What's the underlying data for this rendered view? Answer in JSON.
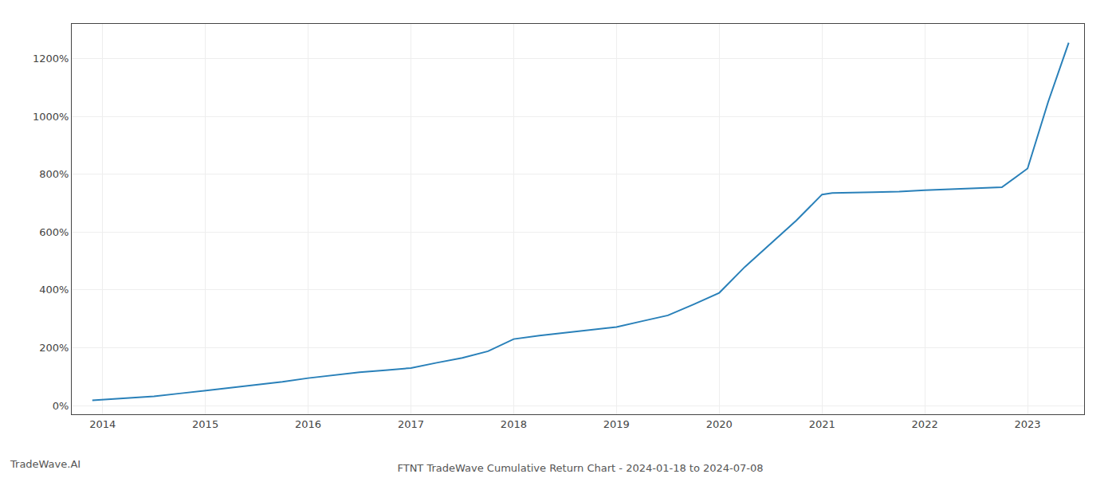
{
  "chart_data": {
    "type": "line",
    "title": "FTNT TradeWave Cumulative Return Chart - 2024-01-18 to 2024-07-08",
    "annotations": [
      "TradeWave.AI"
    ],
    "x": [
      2013.9,
      2014.0,
      2014.25,
      2014.5,
      2014.75,
      2015.0,
      2015.25,
      2015.5,
      2015.75,
      2016.0,
      2016.25,
      2016.5,
      2016.75,
      2017.0,
      2017.25,
      2017.5,
      2017.75,
      2018.0,
      2018.25,
      2018.5,
      2018.75,
      2019.0,
      2019.25,
      2019.5,
      2019.75,
      2020.0,
      2020.25,
      2020.5,
      2020.75,
      2021.0,
      2021.1,
      2021.5,
      2021.75,
      2022.0,
      2022.25,
      2022.5,
      2022.6,
      2022.75,
      2023.0,
      2023.2,
      2023.4
    ],
    "values": [
      18,
      20,
      25,
      32,
      42,
      52,
      62,
      72,
      82,
      95,
      105,
      115,
      122,
      130,
      148,
      165,
      188,
      230,
      242,
      252,
      262,
      272,
      292,
      312,
      350,
      390,
      480,
      560,
      640,
      730,
      735,
      738,
      740,
      745,
      748,
      750,
      752,
      755,
      820,
      1050,
      1255
    ],
    "color": "#2980b9",
    "xlim": [
      2013.7,
      2023.55
    ],
    "xticks": [
      2014,
      2015,
      2016,
      2017,
      2018,
      2019,
      2020,
      2021,
      2022,
      2023
    ],
    "ylim": [
      -30,
      1320
    ],
    "yticks": [
      {
        "value": 0,
        "label": "0%"
      },
      {
        "value": 200,
        "label": "200%"
      },
      {
        "value": 400,
        "label": "400%"
      },
      {
        "value": 600,
        "label": "600%"
      },
      {
        "value": 800,
        "label": "800%"
      },
      {
        "value": 1000,
        "label": "1000%"
      },
      {
        "value": 1200,
        "label": "1200%"
      }
    ],
    "grid": true
  }
}
